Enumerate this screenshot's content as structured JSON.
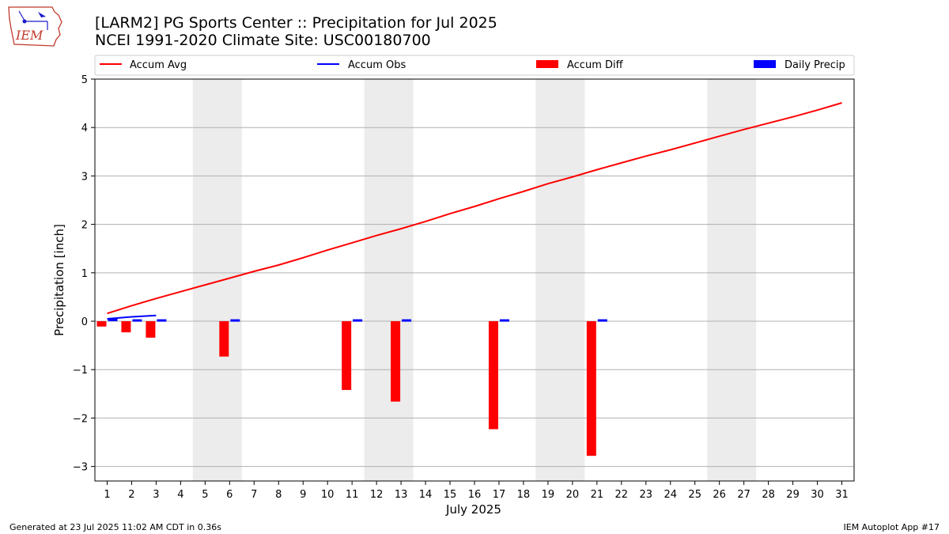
{
  "header": {
    "title_line1": "[LARM2] PG Sports Center :: Precipitation for Jul 2025",
    "title_line2": "NCEI 1991-2020 Climate Site: USC00180700",
    "logo_text": "IEM"
  },
  "footer": {
    "left": "Generated at 23 Jul 2025 11:02 AM CDT in 0.36s",
    "right": "IEM Autoplot App #17"
  },
  "chart_data": {
    "type": "bar",
    "xlabel": "July 2025",
    "ylabel": "Precipitation [inch]",
    "ylim": [
      -3.3,
      5.0
    ],
    "xlim": [
      0.5,
      31.5
    ],
    "yticks": [
      -3,
      -2,
      -1,
      0,
      1,
      2,
      3,
      4,
      5
    ],
    "ytick_labels": [
      "−3",
      "−2",
      "−1",
      "0",
      "1",
      "2",
      "3",
      "4",
      "5"
    ],
    "x": [
      1,
      2,
      3,
      4,
      5,
      6,
      7,
      8,
      9,
      10,
      11,
      12,
      13,
      14,
      15,
      16,
      17,
      18,
      19,
      20,
      21,
      22,
      23,
      24,
      25,
      26,
      27,
      28,
      29,
      30,
      31
    ],
    "grid": "horizontal",
    "weekend_shading": [
      [
        5,
        6
      ],
      [
        12,
        13
      ],
      [
        19,
        20
      ],
      [
        26,
        27
      ]
    ],
    "legend": {
      "placement": "top",
      "entries": [
        "Accum Avg",
        "Accum Obs",
        "Accum Diff",
        "Daily Precip"
      ]
    },
    "series": [
      {
        "name": "Accum Avg",
        "kind": "line",
        "color": "#ff0000",
        "x": [
          1,
          2,
          3,
          4,
          5,
          6,
          7,
          8,
          9,
          10,
          11,
          12,
          13,
          14,
          15,
          16,
          17,
          18,
          19,
          20,
          21,
          22,
          23,
          24,
          25,
          26,
          27,
          28,
          29,
          30,
          31
        ],
        "values": [
          0.16,
          0.32,
          0.47,
          0.61,
          0.75,
          0.89,
          1.03,
          1.16,
          1.31,
          1.47,
          1.62,
          1.77,
          1.91,
          2.06,
          2.22,
          2.37,
          2.53,
          2.68,
          2.84,
          2.98,
          3.13,
          3.27,
          3.41,
          3.54,
          3.68,
          3.82,
          3.96,
          4.09,
          4.22,
          4.36,
          4.51
        ]
      },
      {
        "name": "Accum Obs",
        "kind": "line",
        "color": "#0000ff",
        "x": [
          1,
          2,
          3
        ],
        "values": [
          0.05,
          0.09,
          0.12
        ]
      },
      {
        "name": "Accum Diff",
        "kind": "bar",
        "color": "#ff0000",
        "x": [
          1,
          2,
          3,
          6,
          11,
          13,
          17,
          21
        ],
        "values": [
          -0.11,
          -0.23,
          -0.34,
          -0.73,
          -1.42,
          -1.66,
          -2.23,
          -2.78
        ]
      },
      {
        "name": "Daily Precip",
        "kind": "bar",
        "color": "#0000ff",
        "x": [
          1,
          2,
          3,
          6,
          11,
          13,
          17,
          21
        ],
        "values": [
          0.05,
          0.04,
          0.04,
          0.04,
          0.04,
          0.04,
          0.04,
          0.04
        ]
      }
    ]
  }
}
